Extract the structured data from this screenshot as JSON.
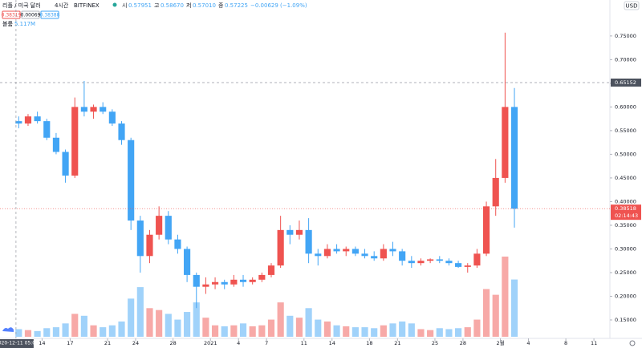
{
  "chart_data": {
    "type": "candlestick",
    "title": "리플 / 미국 달러",
    "interval": "4시간",
    "exchange": "BITFINEX",
    "ohlc": [
      {
        "label": "시",
        "value": "0.57951"
      },
      {
        "label": "고",
        "value": "0.58670"
      },
      {
        "label": "저",
        "value": "0.57010"
      },
      {
        "label": "종",
        "value": "0.57225"
      }
    ],
    "change": "−0.00629 (−1.09%)",
    "price_boxes": [
      "0.38319",
      "0.00069",
      "0.38388"
    ],
    "volume_title": "볼륨",
    "volume_text": "5.117M",
    "currency": "USD",
    "up_color": "#ef5350",
    "down_color": "#42a5f5",
    "x": [
      "2020-12-11",
      "2020-12-12",
      "2020-12-13",
      "2020-12-14",
      "2020-12-15",
      "2020-12-16",
      "2020-12-17",
      "2020-12-18",
      "2020-12-19",
      "2020-12-20",
      "2020-12-21",
      "2020-12-22",
      "2020-12-23",
      "2020-12-24",
      "2020-12-25",
      "2020-12-26",
      "2020-12-27",
      "2020-12-28",
      "2020-12-29",
      "2020-12-30",
      "2020-12-31",
      "2021-01-01",
      "2021-01-02",
      "2021-01-03",
      "2021-01-04",
      "2021-01-05",
      "2021-01-06",
      "2021-01-07",
      "2021-01-08",
      "2021-01-09",
      "2021-01-10",
      "2021-01-11",
      "2021-01-12",
      "2021-01-13",
      "2021-01-14",
      "2021-01-15",
      "2021-01-16",
      "2021-01-17",
      "2021-01-18",
      "2021-01-19",
      "2021-01-20",
      "2021-01-21",
      "2021-01-22",
      "2021-01-23",
      "2021-01-24",
      "2021-01-25",
      "2021-01-26",
      "2021-01-27",
      "2021-01-28",
      "2021-01-29",
      "2021-01-30",
      "2021-01-31",
      "2021-02-01",
      "2021-02-02"
    ],
    "open": [
      0.57,
      0.565,
      0.58,
      0.57,
      0.535,
      0.505,
      0.455,
      0.6,
      0.59,
      0.6,
      0.59,
      0.565,
      0.53,
      0.36,
      0.285,
      0.33,
      0.37,
      0.32,
      0.3,
      0.245,
      0.22,
      0.225,
      0.23,
      0.225,
      0.235,
      0.23,
      0.235,
      0.245,
      0.265,
      0.34,
      0.33,
      0.34,
      0.29,
      0.285,
      0.3,
      0.295,
      0.3,
      0.29,
      0.285,
      0.28,
      0.3,
      0.295,
      0.275,
      0.27,
      0.275,
      0.278,
      0.275,
      0.27,
      0.262,
      0.265,
      0.29,
      0.39,
      0.45,
      0.6
    ],
    "high": [
      0.58,
      0.585,
      0.59,
      0.575,
      0.545,
      0.51,
      0.62,
      0.655,
      0.605,
      0.61,
      0.595,
      0.57,
      0.535,
      0.37,
      0.34,
      0.39,
      0.38,
      0.33,
      0.305,
      0.25,
      0.24,
      0.24,
      0.235,
      0.245,
      0.245,
      0.24,
      0.25,
      0.27,
      0.37,
      0.35,
      0.36,
      0.365,
      0.3,
      0.31,
      0.31,
      0.305,
      0.305,
      0.3,
      0.295,
      0.31,
      0.315,
      0.3,
      0.285,
      0.28,
      0.28,
      0.285,
      0.28,
      0.275,
      0.27,
      0.3,
      0.4,
      0.49,
      0.757,
      0.64
    ],
    "low": [
      0.555,
      0.56,
      0.565,
      0.53,
      0.5,
      0.44,
      0.45,
      0.58,
      0.575,
      0.585,
      0.56,
      0.52,
      0.34,
      0.25,
      0.27,
      0.32,
      0.31,
      0.29,
      0.23,
      0.175,
      0.205,
      0.215,
      0.215,
      0.22,
      0.22,
      0.225,
      0.23,
      0.24,
      0.26,
      0.31,
      0.32,
      0.27,
      0.265,
      0.28,
      0.29,
      0.285,
      0.285,
      0.28,
      0.275,
      0.275,
      0.285,
      0.265,
      0.26,
      0.265,
      0.27,
      0.27,
      0.265,
      0.26,
      0.25,
      0.26,
      0.285,
      0.37,
      0.44,
      0.345
    ],
    "close": [
      0.565,
      0.58,
      0.57,
      0.535,
      0.505,
      0.455,
      0.6,
      0.59,
      0.6,
      0.59,
      0.565,
      0.53,
      0.36,
      0.285,
      0.33,
      0.37,
      0.32,
      0.3,
      0.245,
      0.22,
      0.225,
      0.23,
      0.225,
      0.235,
      0.23,
      0.235,
      0.245,
      0.265,
      0.34,
      0.33,
      0.34,
      0.29,
      0.285,
      0.3,
      0.295,
      0.3,
      0.29,
      0.285,
      0.28,
      0.3,
      0.295,
      0.275,
      0.27,
      0.275,
      0.278,
      0.275,
      0.27,
      0.262,
      0.265,
      0.29,
      0.39,
      0.45,
      0.6,
      0.385
    ],
    "volume": [
      40,
      35,
      30,
      45,
      50,
      70,
      120,
      110,
      60,
      50,
      60,
      80,
      200,
      260,
      150,
      140,
      120,
      90,
      130,
      180,
      100,
      60,
      55,
      60,
      70,
      55,
      60,
      90,
      180,
      110,
      100,
      150,
      90,
      80,
      60,
      55,
      50,
      50,
      45,
      60,
      70,
      80,
      70,
      40,
      35,
      45,
      40,
      45,
      50,
      90,
      250,
      220,
      420,
      300
    ],
    "xlim": [
      "2020-12-09T12:00",
      "2021-02-12T17:00"
    ],
    "xticks": [
      {
        "value": "2020-12-14",
        "label": "14"
      },
      {
        "value": "2020-12-17",
        "label": "17"
      },
      {
        "value": "2020-12-21",
        "label": "21"
      },
      {
        "value": "2020-12-24",
        "label": "24"
      },
      {
        "value": "2020-12-28",
        "label": "28"
      },
      {
        "value": "2021-01-01",
        "label": "2021"
      },
      {
        "value": "2021-01-04",
        "label": "4"
      },
      {
        "value": "2021-01-07",
        "label": "7"
      },
      {
        "value": "2021-01-11",
        "label": "11"
      },
      {
        "value": "2021-01-14",
        "label": "14"
      },
      {
        "value": "2021-01-18",
        "label": "18"
      },
      {
        "value": "2021-01-21",
        "label": "21"
      },
      {
        "value": "2021-01-25",
        "label": "25"
      },
      {
        "value": "2021-01-28",
        "label": "28"
      },
      {
        "value": "2021-02-01",
        "label": "2월"
      },
      {
        "value": "2021-02-04",
        "label": "4"
      },
      {
        "value": "2021-02-08",
        "label": "8"
      },
      {
        "value": "2021-02-11",
        "label": "11"
      }
    ],
    "ylim": [
      0.111,
      0.826
    ],
    "yticks": [
      {
        "value": 0.15,
        "label": "0.15000"
      },
      {
        "value": 0.2,
        "label": "0.20000"
      },
      {
        "value": 0.25,
        "label": "0.25000"
      },
      {
        "value": 0.3,
        "label": "0.30000"
      },
      {
        "value": 0.35,
        "label": "0.35000"
      },
      {
        "value": 0.4,
        "label": "0.40000"
      },
      {
        "value": 0.45,
        "label": "0.45000"
      },
      {
        "value": 0.5,
        "label": "0.50000"
      },
      {
        "value": 0.55,
        "label": "0.55000"
      },
      {
        "value": 0.6,
        "label": "0.60000"
      },
      {
        "value": 0.65,
        "label": "0.65000"
      },
      {
        "value": 0.7,
        "label": "0.70000"
      },
      {
        "value": 0.75,
        "label": "0.75000"
      }
    ],
    "crosshair": {
      "x": "2020-12-11T05:00",
      "x_label": "2020-12-11 05:00",
      "y": 0.65152
    },
    "last_price": 0.38518,
    "countdown": "02:14:43",
    "grid": false
  }
}
